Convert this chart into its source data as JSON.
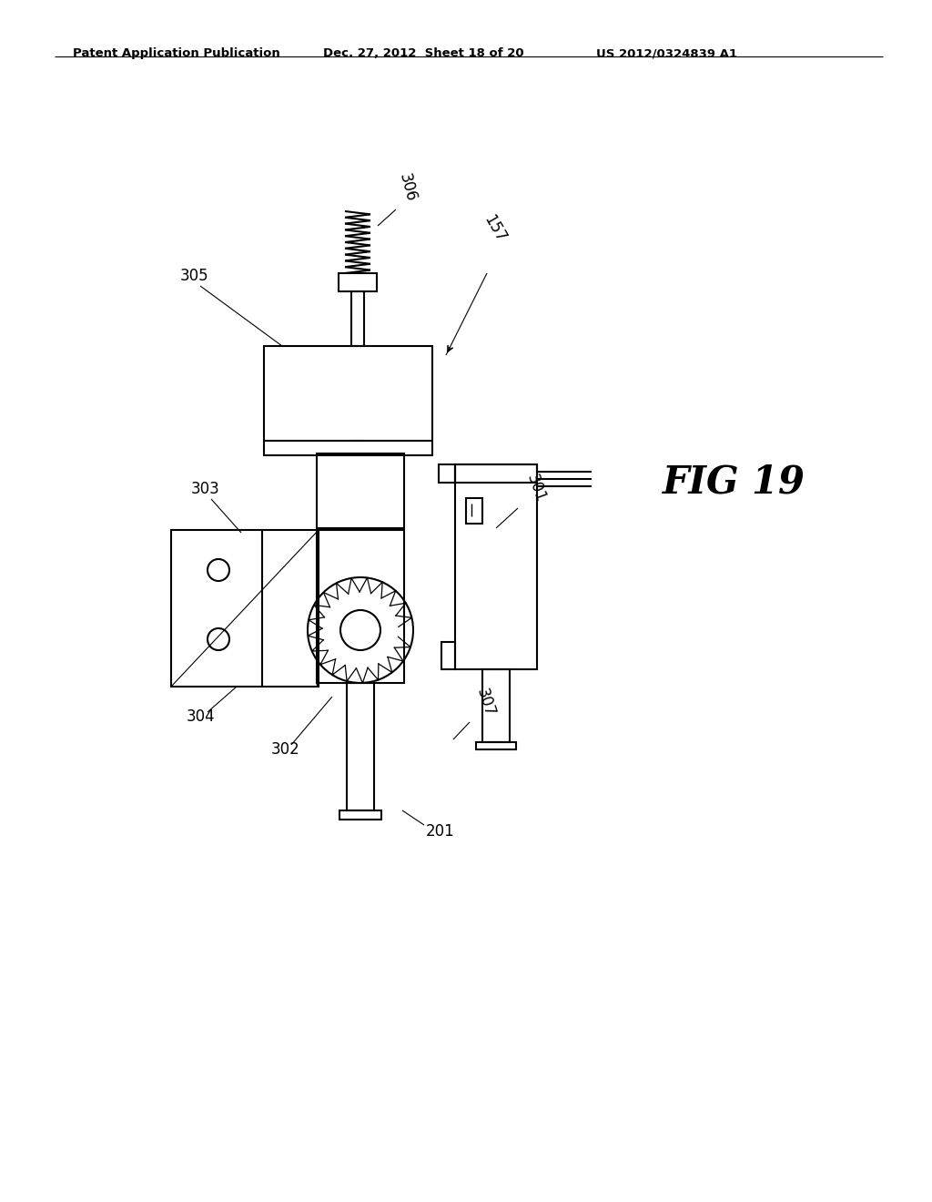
{
  "background_color": "#ffffff",
  "header_left": "Patent Application Publication",
  "header_center": "Dec. 27, 2012  Sheet 18 of 20",
  "header_right": "US 2012/0324839 A1",
  "fig_label": "FIG 19",
  "line_color": "#000000",
  "line_width": 1.5
}
